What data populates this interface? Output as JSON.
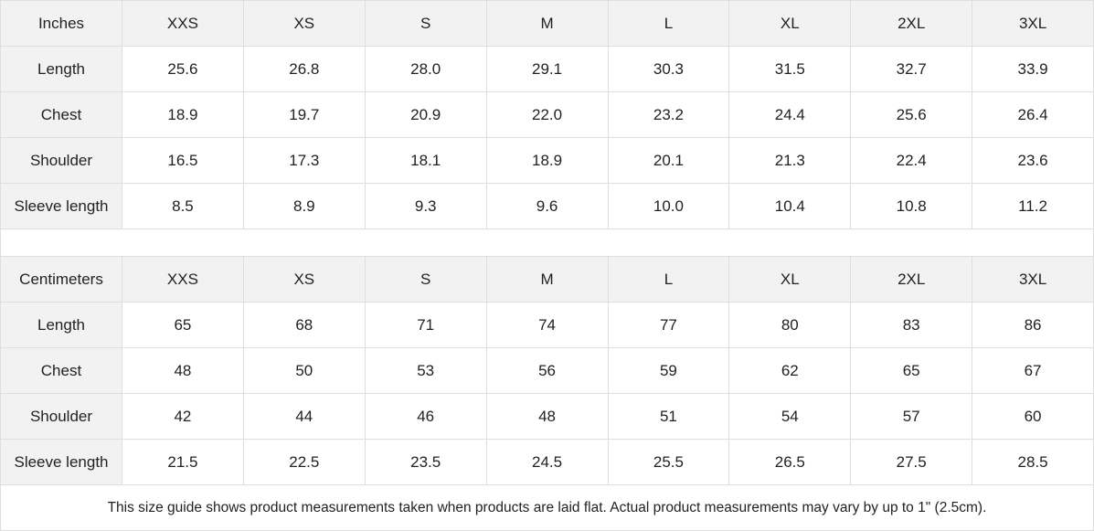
{
  "tables": [
    {
      "unit": "Inches",
      "sizes": [
        "XXS",
        "XS",
        "S",
        "M",
        "L",
        "XL",
        "2XL",
        "3XL"
      ],
      "rows": [
        {
          "label": "Length",
          "values": [
            "25.6",
            "26.8",
            "28.0",
            "29.1",
            "30.3",
            "31.5",
            "32.7",
            "33.9"
          ]
        },
        {
          "label": "Chest",
          "values": [
            "18.9",
            "19.7",
            "20.9",
            "22.0",
            "23.2",
            "24.4",
            "25.6",
            "26.4"
          ]
        },
        {
          "label": "Shoulder",
          "values": [
            "16.5",
            "17.3",
            "18.1",
            "18.9",
            "20.1",
            "21.3",
            "22.4",
            "23.6"
          ]
        },
        {
          "label": "Sleeve length",
          "values": [
            "8.5",
            "8.9",
            "9.3",
            "9.6",
            "10.0",
            "10.4",
            "10.8",
            "11.2"
          ]
        }
      ]
    },
    {
      "unit": "Centimeters",
      "sizes": [
        "XXS",
        "XS",
        "S",
        "M",
        "L",
        "XL",
        "2XL",
        "3XL"
      ],
      "rows": [
        {
          "label": "Length",
          "values": [
            "65",
            "68",
            "71",
            "74",
            "77",
            "80",
            "83",
            "86"
          ]
        },
        {
          "label": "Chest",
          "values": [
            "48",
            "50",
            "53",
            "56",
            "59",
            "62",
            "65",
            "67"
          ]
        },
        {
          "label": "Shoulder",
          "values": [
            "42",
            "44",
            "46",
            "48",
            "51",
            "54",
            "57",
            "60"
          ]
        },
        {
          "label": "Sleeve length",
          "values": [
            "21.5",
            "22.5",
            "23.5",
            "24.5",
            "25.5",
            "26.5",
            "27.5",
            "28.5"
          ]
        }
      ]
    }
  ],
  "note": "This size guide shows product measurements taken when products are laid flat.  Actual product measurements may vary by up to 1\" (2.5cm)."
}
